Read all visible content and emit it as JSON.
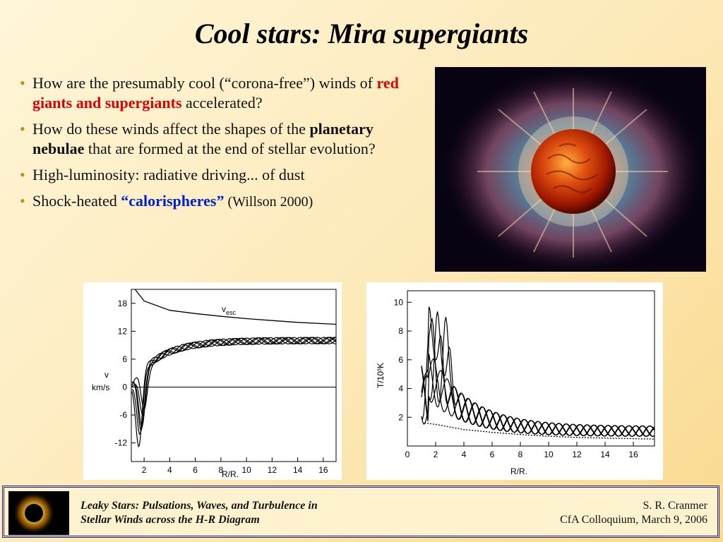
{
  "slide": {
    "title": "Cool stars:  Mira supergiants",
    "bullets": [
      {
        "pre": "How are the presumably cool (“corona-free”) winds of ",
        "em": "red giants and supergiants",
        "post": " accelerated?"
      },
      {
        "pre": "How do these winds affect the shapes of the ",
        "em": "planetary nebulae",
        "post": " that are formed at the end of stellar evolution?"
      },
      {
        "text": "High-luminosity:  radiative driving... of dust"
      },
      {
        "pre": "Shock-heated ",
        "em": "“calorispheres”",
        "post": "  (Willson 2000)"
      }
    ],
    "bullet_glyph": "•"
  },
  "footer": {
    "left_line1": "Leaky Stars:  Pulsations, Waves, and Turbulence in",
    "left_line2": "Stellar Winds across the H-R Diagram",
    "right_line1": "S. R. Cranmer",
    "right_line2": "CfA Colloquium,  March 9, 2006"
  },
  "colors": {
    "highlight_red": "#e00000",
    "highlight_blue": "#0022cc",
    "footer_border": "#23237a"
  },
  "chart_data": [
    {
      "type": "line",
      "xlabel": "R/R.",
      "ylabel_line1": "v",
      "ylabel_line2": "km/s",
      "xlim": [
        1,
        17
      ],
      "ylim": [
        -16,
        21
      ],
      "x_ticks": [
        2,
        4,
        6,
        8,
        10,
        12,
        14,
        16
      ],
      "y_ticks": [
        18,
        12,
        6,
        0,
        -6,
        -12
      ],
      "annotation": {
        "text": "v",
        "sub": "esc"
      },
      "series": [
        {
          "x": [
            1.3,
            2,
            4,
            6,
            8,
            10,
            12,
            14,
            17
          ],
          "values": [
            21,
            18.5,
            16.5,
            15.8,
            15.2,
            14.7,
            14.3,
            13.9,
            13.5
          ]
        }
      ]
    },
    {
      "type": "line",
      "xlabel": "R/R.",
      "ylabel": "T/10³K",
      "xlim": [
        0,
        17.5
      ],
      "ylim": [
        0,
        10.8
      ],
      "x_ticks": [
        0,
        2,
        4,
        6,
        8,
        10,
        12,
        14,
        16
      ],
      "y_ticks": [
        2,
        4,
        6,
        8,
        10
      ],
      "series": [
        {
          "x": [
            1.2,
            2,
            4,
            6,
            8,
            10,
            12,
            14,
            17.5
          ],
          "values": [
            1.6,
            1.5,
            1.15,
            0.95,
            0.8,
            0.68,
            0.6,
            0.55,
            0.48
          ]
        }
      ]
    }
  ]
}
